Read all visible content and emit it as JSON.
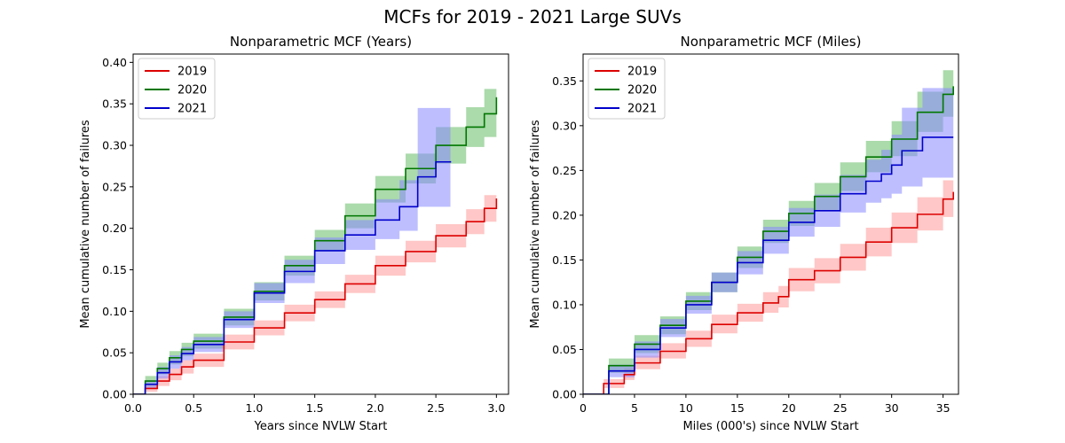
{
  "figure": {
    "title": "MCFs for 2019 - 2021 Large SUVs"
  },
  "chart_data": [
    {
      "type": "line",
      "title": "Nonparametric MCF (Years)",
      "xlabel": "Years since NVLW Start",
      "ylabel": "Mean cumulative number of failures",
      "xlim": [
        0,
        3.1
      ],
      "ylim": [
        0,
        0.41
      ],
      "xticks": [
        0.0,
        0.5,
        1.0,
        1.5,
        2.0,
        2.5,
        3.0
      ],
      "xtick_labels": [
        "0.0",
        "0.5",
        "1.0",
        "1.5",
        "2.0",
        "2.5",
        "3.0"
      ],
      "yticks": [
        0.0,
        0.05,
        0.1,
        0.15,
        0.2,
        0.25,
        0.3,
        0.35,
        0.4
      ],
      "ytick_labels": [
        "0.00",
        "0.05",
        "0.10",
        "0.15",
        "0.20",
        "0.25",
        "0.30",
        "0.35",
        "0.40"
      ],
      "grid": false,
      "legend_position": "top-left",
      "series": [
        {
          "name": "2019",
          "color": "#dd0000",
          "band_color": "#ff9999",
          "x": [
            0,
            0.1,
            0.2,
            0.3,
            0.4,
            0.5,
            0.75,
            1.0,
            1.25,
            1.5,
            1.75,
            2.0,
            2.25,
            2.5,
            2.75,
            2.9,
            3.0
          ],
          "values": [
            0,
            0.007,
            0.016,
            0.024,
            0.033,
            0.041,
            0.063,
            0.08,
            0.098,
            0.114,
            0.133,
            0.155,
            0.172,
            0.191,
            0.208,
            0.224,
            0.236
          ],
          "lower": [
            0,
            0.003,
            0.01,
            0.017,
            0.025,
            0.033,
            0.054,
            0.071,
            0.088,
            0.104,
            0.122,
            0.143,
            0.159,
            0.177,
            0.193,
            0.208,
            0.21
          ],
          "upper": [
            0,
            0.011,
            0.022,
            0.031,
            0.041,
            0.049,
            0.072,
            0.089,
            0.108,
            0.124,
            0.144,
            0.167,
            0.185,
            0.205,
            0.223,
            0.24,
            0.265
          ]
        },
        {
          "name": "2020",
          "color": "#007700",
          "band_color": "#66bb66",
          "x": [
            0,
            0.1,
            0.2,
            0.3,
            0.4,
            0.5,
            0.75,
            1.0,
            1.25,
            1.5,
            1.75,
            2.0,
            2.25,
            2.5,
            2.75,
            2.9,
            3.0
          ],
          "values": [
            0,
            0.016,
            0.031,
            0.044,
            0.054,
            0.064,
            0.093,
            0.124,
            0.155,
            0.185,
            0.215,
            0.247,
            0.272,
            0.3,
            0.322,
            0.338,
            0.358
          ],
          "lower": [
            0,
            0.01,
            0.024,
            0.036,
            0.046,
            0.055,
            0.083,
            0.113,
            0.143,
            0.172,
            0.2,
            0.231,
            0.254,
            0.278,
            0.298,
            0.31,
            0.325
          ],
          "upper": [
            0,
            0.022,
            0.038,
            0.052,
            0.062,
            0.073,
            0.103,
            0.135,
            0.167,
            0.198,
            0.23,
            0.263,
            0.29,
            0.322,
            0.346,
            0.368,
            0.4
          ]
        },
        {
          "name": "2021",
          "color": "#0000cc",
          "band_color": "#8888ff",
          "x": [
            0,
            0.1,
            0.2,
            0.3,
            0.4,
            0.5,
            0.75,
            1.0,
            1.25,
            1.5,
            1.75,
            2.0,
            2.2,
            2.35,
            2.5,
            2.62
          ],
          "values": [
            0,
            0.012,
            0.026,
            0.039,
            0.049,
            0.06,
            0.09,
            0.122,
            0.148,
            0.173,
            0.192,
            0.21,
            0.226,
            0.262,
            0.28,
            0.281
          ],
          "lower": [
            0,
            0.007,
            0.019,
            0.031,
            0.041,
            0.051,
            0.08,
            0.11,
            0.134,
            0.157,
            0.174,
            0.187,
            0.197,
            0.226,
            0.226,
            0.226
          ],
          "upper": [
            0,
            0.017,
            0.033,
            0.047,
            0.057,
            0.069,
            0.1,
            0.134,
            0.162,
            0.189,
            0.21,
            0.235,
            0.258,
            0.345,
            0.345,
            0.345
          ]
        }
      ]
    },
    {
      "type": "line",
      "title": "Nonparametric MCF (Miles)",
      "xlabel": "Miles (000's) since NVLW Start",
      "ylabel": "Mean cumulative number of failures",
      "xlim": [
        0,
        36.5
      ],
      "ylim": [
        0,
        0.38
      ],
      "xticks": [
        0,
        5,
        10,
        15,
        20,
        25,
        30,
        35
      ],
      "xtick_labels": [
        "0",
        "5",
        "10",
        "15",
        "20",
        "25",
        "30",
        "35"
      ],
      "yticks": [
        0.0,
        0.05,
        0.1,
        0.15,
        0.2,
        0.25,
        0.3,
        0.35
      ],
      "ytick_labels": [
        "0.00",
        "0.05",
        "0.10",
        "0.15",
        "0.20",
        "0.25",
        "0.30",
        "0.35"
      ],
      "grid": false,
      "legend_position": "top-left",
      "series": [
        {
          "name": "2019",
          "color": "#dd0000",
          "band_color": "#ff9999",
          "x": [
            0,
            2,
            4,
            5,
            7.5,
            10,
            12.5,
            15,
            17.5,
            19,
            20,
            22.5,
            25,
            27.5,
            30,
            32.5,
            35,
            36
          ],
          "values": [
            0,
            0.012,
            0.022,
            0.035,
            0.048,
            0.062,
            0.078,
            0.091,
            0.102,
            0.109,
            0.128,
            0.138,
            0.153,
            0.17,
            0.186,
            0.201,
            0.218,
            0.226
          ],
          "lower": [
            0,
            0.007,
            0.016,
            0.028,
            0.04,
            0.053,
            0.068,
            0.081,
            0.091,
            0.097,
            0.115,
            0.124,
            0.138,
            0.154,
            0.169,
            0.183,
            0.198,
            0.204
          ],
          "upper": [
            0,
            0.017,
            0.029,
            0.043,
            0.057,
            0.071,
            0.089,
            0.101,
            0.114,
            0.121,
            0.141,
            0.152,
            0.168,
            0.186,
            0.203,
            0.22,
            0.239,
            0.25
          ]
        },
        {
          "name": "2020",
          "color": "#007700",
          "band_color": "#66bb66",
          "x": [
            0,
            2.5,
            5,
            7.5,
            10,
            12.5,
            15,
            17.5,
            20,
            22.5,
            25,
            27.5,
            30,
            32.5,
            35,
            36
          ],
          "values": [
            0,
            0.032,
            0.056,
            0.077,
            0.104,
            0.125,
            0.153,
            0.182,
            0.202,
            0.221,
            0.243,
            0.265,
            0.285,
            0.315,
            0.335,
            0.344
          ],
          "lower": [
            0,
            0.024,
            0.046,
            0.067,
            0.094,
            0.114,
            0.141,
            0.169,
            0.188,
            0.206,
            0.227,
            0.248,
            0.266,
            0.293,
            0.31,
            0.316
          ],
          "upper": [
            0,
            0.04,
            0.066,
            0.087,
            0.114,
            0.136,
            0.165,
            0.195,
            0.216,
            0.236,
            0.259,
            0.283,
            0.305,
            0.338,
            0.362,
            0.375
          ]
        },
        {
          "name": "2021",
          "color": "#0000cc",
          "band_color": "#8888ff",
          "x": [
            0,
            2.5,
            5,
            7.5,
            10,
            12.5,
            15,
            17.5,
            20,
            22.5,
            25,
            27.5,
            29,
            30,
            31,
            33,
            36
          ],
          "values": [
            0,
            0.026,
            0.05,
            0.074,
            0.1,
            0.125,
            0.147,
            0.172,
            0.192,
            0.205,
            0.224,
            0.238,
            0.246,
            0.256,
            0.272,
            0.287,
            0.287
          ],
          "lower": [
            0,
            0.019,
            0.041,
            0.064,
            0.09,
            0.114,
            0.134,
            0.157,
            0.176,
            0.187,
            0.203,
            0.214,
            0.219,
            0.224,
            0.232,
            0.242,
            0.242
          ],
          "upper": [
            0,
            0.033,
            0.059,
            0.084,
            0.11,
            0.136,
            0.16,
            0.187,
            0.208,
            0.223,
            0.245,
            0.262,
            0.273,
            0.29,
            0.32,
            0.342,
            0.342
          ]
        }
      ]
    }
  ]
}
